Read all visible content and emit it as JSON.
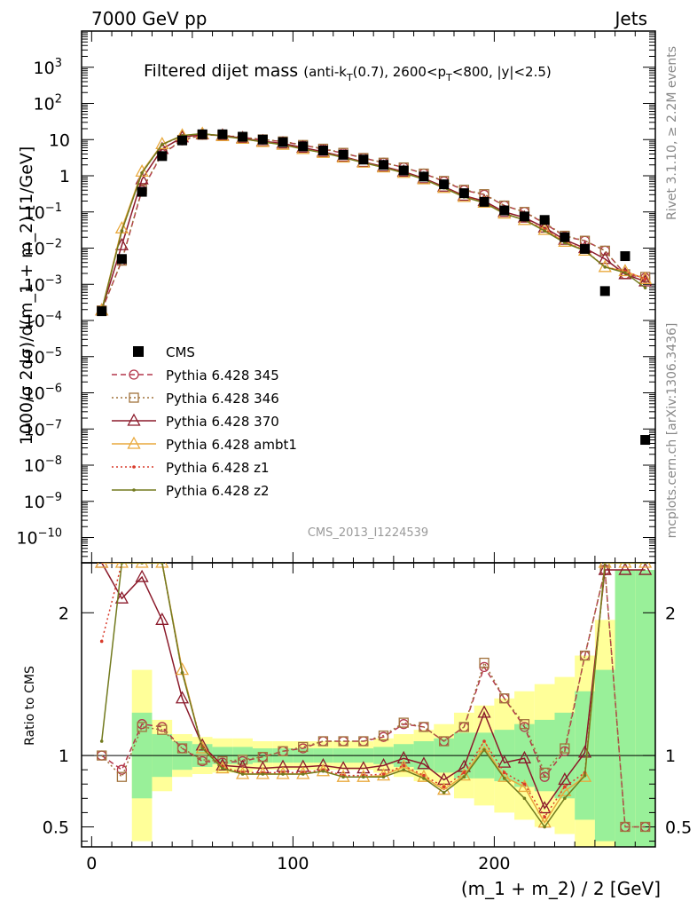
{
  "header": {
    "left": "7000 GeV pp",
    "right": "Jets"
  },
  "main_panel": {
    "title": "Filtered dijet mass",
    "subtitle_pre": "(anti-k",
    "subtitle_sub1": "T",
    "subtitle_mid": "(0.7), 2600<p",
    "subtitle_sub2": "T",
    "subtitle_post": "<800, |y|<2.5)",
    "ylabel": "1000/σ 2dσ)/d(m_1 + m_2) [1/GeV]",
    "watermark": "CMS_2013_I1224539",
    "side_text_top": "Rivet 3.1.10, ≥ 2.2M events",
    "side_text_bottom": "mcplots.cern.ch [arXiv:1306.3436]"
  },
  "ratio_panel": {
    "ylabel": "Ratio to CMS",
    "xlabel": "(m_1 + m_2) / 2 [GeV]"
  },
  "legend": [
    {
      "label": "CMS"
    },
    {
      "label": "Pythia 6.428 345"
    },
    {
      "label": "Pythia 6.428 346"
    },
    {
      "label": "Pythia 6.428 370"
    },
    {
      "label": "Pythia 6.428 ambt1"
    },
    {
      "label": "Pythia 6.428 z1"
    },
    {
      "label": "Pythia 6.428 z2"
    }
  ],
  "chart_data": {
    "type": "line",
    "x": [
      5,
      15,
      25,
      35,
      45,
      55,
      65,
      75,
      85,
      95,
      105,
      115,
      125,
      135,
      145,
      155,
      165,
      175,
      185,
      195,
      205,
      215,
      225,
      235,
      245,
      255,
      265,
      275
    ],
    "ylim": [
      2e-11,
      10000.0
    ],
    "ratio_ylim": [
      0.36,
      2.35
    ],
    "xlim": [
      -5,
      280
    ],
    "y_scale": "log",
    "legend_position": "middle-left",
    "x_ticks": [
      0,
      100,
      200
    ],
    "y_ticks": [
      "10^-10",
      "10^-9",
      "10^-8",
      "10^-7",
      "10^-6",
      "10^-5",
      "10^-4",
      "10^-3",
      "10^-2",
      "10^-1",
      "1",
      "10",
      "10^2",
      "10^3"
    ],
    "ratio_ticks": [
      "0.5",
      "1",
      "2"
    ],
    "series": [
      {
        "name": "CMS",
        "color": "#000000",
        "style": "marker-square",
        "values": [
          0.00018,
          0.005,
          0.36,
          3.5,
          9.5,
          14,
          14,
          12,
          10,
          8.5,
          6.5,
          5,
          3.8,
          2.8,
          2.0,
          1.4,
          0.95,
          0.58,
          0.33,
          0.19,
          0.11,
          0.075,
          0.06,
          0.02,
          0.0095,
          0.00065,
          0.006,
          5e-08
        ],
        "ratio_band_green": [
          0.55,
          0.68,
          1.3,
          1.15,
          1.1,
          1.08,
          1.06,
          1.06,
          1.05,
          1.05,
          1.05,
          1.05,
          1.05,
          1.05,
          1.06,
          1.08,
          1.1,
          1.12,
          1.16,
          1.16,
          1.18,
          1.22,
          1.25,
          1.3,
          1.45,
          1.6,
          2.3,
          2.3
        ],
        "ratio_band_yellow": [
          0.3,
          0.4,
          1.6,
          1.25,
          1.15,
          1.13,
          1.12,
          1.12,
          1.1,
          1.1,
          1.1,
          1.1,
          1.1,
          1.1,
          1.12,
          1.15,
          1.18,
          1.22,
          1.3,
          1.35,
          1.4,
          1.45,
          1.5,
          1.55,
          1.7,
          1.95,
          2.3,
          2.3
        ]
      },
      {
        "name": "Pythia 6.428 345",
        "color": "#b3374b",
        "style": "dashed-circle",
        "values": [
          0.00019,
          0.0045,
          0.4,
          4.0,
          9.5,
          13.5,
          13.0,
          11.5,
          10.0,
          8.8,
          7.0,
          5.5,
          4.2,
          3.1,
          2.3,
          1.7,
          1.15,
          0.7,
          0.4,
          0.3,
          0.15,
          0.1,
          0.048,
          0.021,
          0.016,
          0.0085,
          0.0019,
          0.0015
        ],
        "ratio": [
          1.0,
          0.9,
          1.22,
          1.2,
          1.05,
          0.96,
          0.95,
          0.96,
          0.99,
          1.03,
          1.05,
          1.1,
          1.1,
          1.1,
          1.13,
          1.22,
          1.2,
          1.1,
          1.2,
          1.62,
          1.4,
          1.2,
          0.85,
          1.03,
          1.7,
          2.3,
          0.5,
          0.5
        ]
      },
      {
        "name": "Pythia 6.428 346",
        "color": "#a1723c",
        "style": "dotted-square",
        "values": [
          0.00019,
          0.0045,
          0.42,
          4.1,
          9.8,
          13.6,
          13.2,
          11.6,
          10.1,
          8.9,
          7.1,
          5.6,
          4.3,
          3.1,
          2.3,
          1.7,
          1.15,
          0.72,
          0.41,
          0.31,
          0.15,
          0.1,
          0.05,
          0.022,
          0.016,
          0.0085,
          0.0019,
          0.0016
        ],
        "ratio": [
          1.0,
          0.85,
          1.2,
          1.18,
          1.05,
          0.97,
          0.96,
          0.97,
          0.99,
          1.03,
          1.06,
          1.1,
          1.1,
          1.1,
          1.14,
          1.23,
          1.2,
          1.1,
          1.2,
          1.65,
          1.4,
          1.22,
          0.88,
          1.05,
          1.7,
          2.3,
          0.5,
          0.5
        ]
      },
      {
        "name": "Pythia 6.428 370",
        "color": "#8b1a2b",
        "style": "solid-triangle",
        "values": [
          0.00019,
          0.012,
          0.8,
          5.5,
          11.5,
          14.0,
          13.0,
          11.0,
          9.0,
          7.8,
          6.0,
          4.6,
          3.4,
          2.4,
          1.8,
          1.3,
          0.85,
          0.5,
          0.28,
          0.2,
          0.1,
          0.07,
          0.037,
          0.017,
          0.01,
          0.005,
          0.0019,
          0.0012
        ],
        "ratio": [
          2.35,
          2.1,
          2.25,
          1.95,
          1.4,
          1.07,
          0.93,
          0.92,
          0.91,
          0.92,
          0.92,
          0.93,
          0.91,
          0.91,
          0.93,
          0.98,
          0.94,
          0.83,
          0.92,
          1.3,
          0.95,
          0.98,
          0.63,
          0.83,
          1.02,
          2.3,
          2.3,
          2.3
        ]
      },
      {
        "name": "Pythia 6.428 ambt1",
        "color": "#e9a93d",
        "style": "solid-triangle",
        "values": [
          0.00019,
          0.035,
          1.3,
          7.5,
          13.0,
          14.5,
          12.5,
          10.5,
          8.6,
          7.2,
          5.5,
          4.3,
          3.2,
          2.3,
          1.7,
          1.2,
          0.8,
          0.46,
          0.26,
          0.18,
          0.09,
          0.06,
          0.032,
          0.015,
          0.0085,
          0.003,
          0.0023,
          0.0014
        ],
        "ratio": [
          2.35,
          2.35,
          2.35,
          2.35,
          1.6,
          1.05,
          0.91,
          0.87,
          0.87,
          0.87,
          0.87,
          0.89,
          0.85,
          0.85,
          0.86,
          0.92,
          0.85,
          0.76,
          0.86,
          1.06,
          0.85,
          0.78,
          0.53,
          0.75,
          0.85,
          2.35,
          2.35,
          2.35
        ]
      },
      {
        "name": "Pythia 6.428 z1",
        "color": "#d93b2b",
        "style": "dotted-dot",
        "values": [
          0.00019,
          0.03,
          1.2,
          7.2,
          12.8,
          14.5,
          12.6,
          10.6,
          8.7,
          7.3,
          5.6,
          4.4,
          3.3,
          2.35,
          1.7,
          1.25,
          0.8,
          0.47,
          0.27,
          0.19,
          0.09,
          0.06,
          0.033,
          0.015,
          0.0088,
          0.003,
          0.0023,
          0.0014
        ],
        "ratio": [
          1.8,
          2.35,
          2.35,
          2.35,
          1.58,
          1.06,
          0.92,
          0.88,
          0.88,
          0.88,
          0.88,
          0.9,
          0.86,
          0.86,
          0.87,
          0.93,
          0.86,
          0.78,
          0.88,
          1.1,
          0.88,
          0.8,
          0.57,
          0.78,
          0.88,
          2.35,
          2.35,
          2.35
        ]
      },
      {
        "name": "Pythia 6.428 z2",
        "color": "#727a1e",
        "style": "solid-dot",
        "values": [
          0.00019,
          0.03,
          1.2,
          7.3,
          12.9,
          14.6,
          12.5,
          10.5,
          8.6,
          7.2,
          5.5,
          4.3,
          3.2,
          2.3,
          1.7,
          1.2,
          0.8,
          0.46,
          0.26,
          0.18,
          0.09,
          0.06,
          0.03,
          0.014,
          0.0085,
          0.003,
          0.0021,
          0.0008
        ],
        "ratio": [
          1.1,
          2.35,
          2.35,
          2.35,
          1.58,
          1.05,
          0.91,
          0.87,
          0.87,
          0.87,
          0.87,
          0.89,
          0.85,
          0.85,
          0.85,
          0.9,
          0.84,
          0.74,
          0.85,
          1.04,
          0.84,
          0.7,
          0.5,
          0.7,
          0.86,
          2.35,
          2.35,
          2.35
        ]
      }
    ]
  }
}
